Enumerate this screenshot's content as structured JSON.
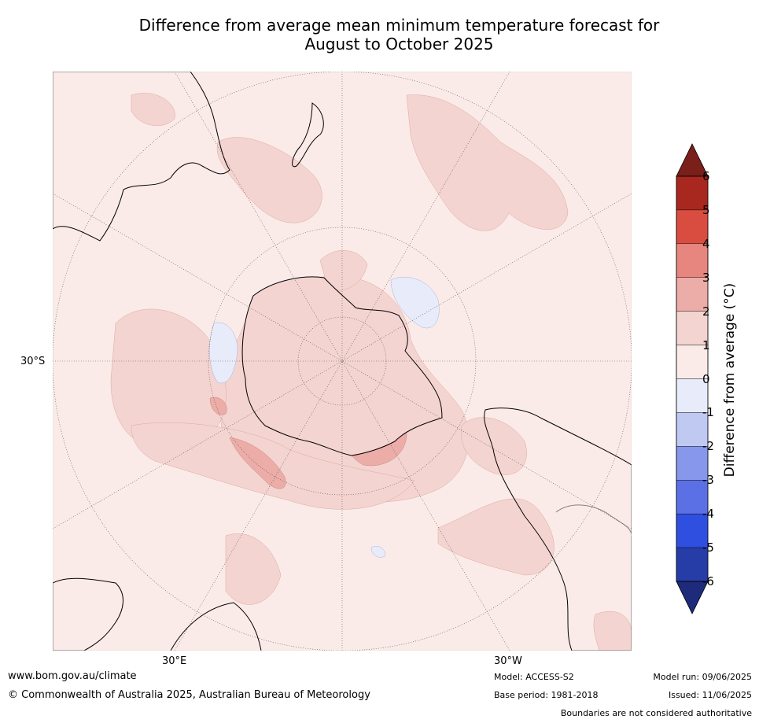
{
  "title_line1": "Difference from average mean minimum temperature forecast for",
  "title_line2": "August to October 2025",
  "map": {
    "projection": "south polar stereographic",
    "lat_label": "30°S",
    "lon_labels": [
      "30°E",
      "30°W"
    ],
    "colors": {
      "land_outline": "#000000",
      "boundary": "#808080",
      "class_0_1": "#fbebe8",
      "class_1_2": "#f4d4d0",
      "class_2_3": "#ecaca7",
      "class_3_4": "#e6867f",
      "class_4_5": "#d94d40",
      "class_m1_0": "#e8ecfa"
    }
  },
  "colorbar": {
    "label": "Difference from average (°C)",
    "ticks": [
      "6",
      "5",
      "4",
      "3",
      "2",
      "1",
      "0",
      "-1",
      "-2",
      "-3",
      "-4",
      "-5",
      "-6"
    ],
    "colors": [
      "#a8271f",
      "#d94d40",
      "#e6867f",
      "#ecaca7",
      "#f4d4d0",
      "#fbebe8",
      "#e8ecfa",
      "#c0c9f2",
      "#8797ec",
      "#5c70e5",
      "#2f4fe0",
      "#263da8"
    ],
    "over_color": "#7a1f1a",
    "under_color": "#1e2b7a"
  },
  "footer": {
    "url": "www.bom.gov.au/climate",
    "copyright": "© Commonwealth of Australia 2025, Australian Bureau of Meteorology",
    "model": "Model: ACCESS-S2",
    "base_period": "Base period: 1981-2018",
    "model_run": "Model run: 09/06/2025",
    "issued": "Issued: 11/06/2025",
    "disclaimer": "Boundaries are not considered authoritative"
  }
}
